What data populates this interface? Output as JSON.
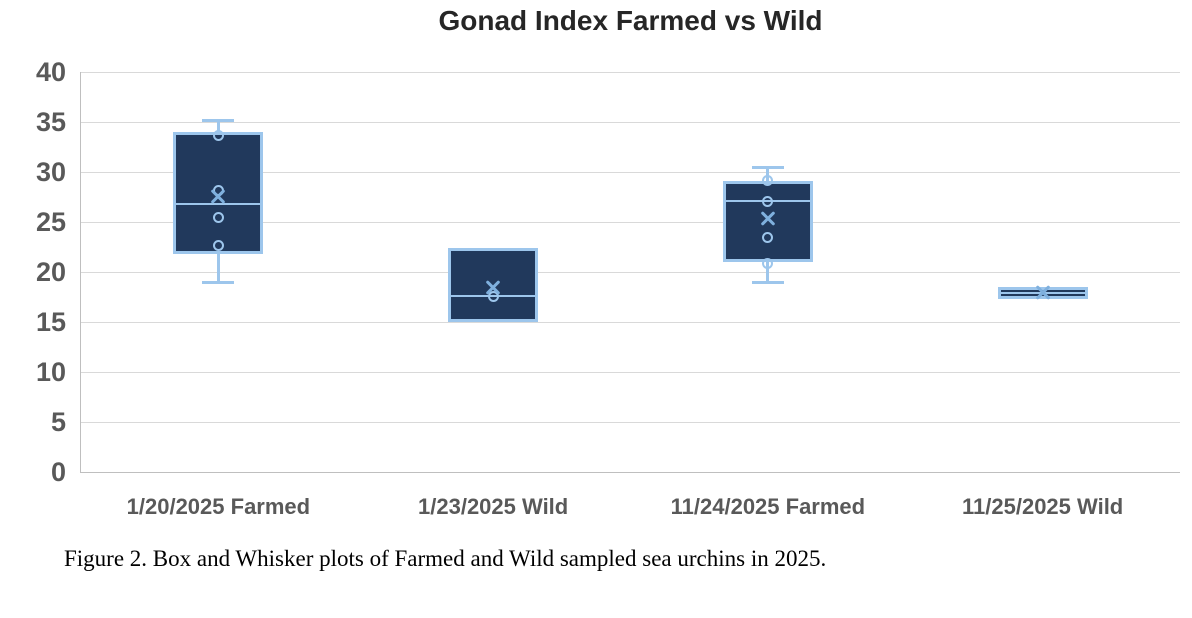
{
  "title": "Gonad Index Farmed vs Wild",
  "caption": "Figure 2. Box and Whisker plots of Farmed and Wild sampled sea urchins in 2025.",
  "colors": {
    "box_fill": "#21395C",
    "box_border": "#9DC6EC",
    "whisker": "#9DC6EC",
    "mean_marker": "#7FB0DE",
    "gridline": "#D9D9D9",
    "axis_line": "#BFBFBF",
    "axis_text": "#595959",
    "title_text": "#262626"
  },
  "chart_data": {
    "type": "box",
    "title": "Gonad Index Farmed vs Wild",
    "xlabel": "",
    "ylabel": "",
    "ylim": [
      0,
      40
    ],
    "ytick_step": 5,
    "ytick_labels": [
      "0",
      "5",
      "10",
      "15",
      "20",
      "25",
      "30",
      "35",
      "40"
    ],
    "grid": true,
    "legend": "none",
    "categories": [
      "1/20/2025 Farmed",
      "1/23/2025 Wild",
      "11/24/2025 Farmed",
      "11/25/2025 Wild"
    ],
    "series": [
      {
        "category": "1/20/2025 Farmed",
        "min": 19.0,
        "q1": 21.8,
        "median": 26.8,
        "q3": 34.0,
        "max": 35.2,
        "mean": 27.6,
        "points": [
          33.7,
          28.2,
          25.5,
          22.7
        ]
      },
      {
        "category": "1/23/2025 Wild",
        "min": 15.0,
        "q1": 15.0,
        "median": 17.6,
        "q3": 22.4,
        "max": 22.4,
        "mean": 18.5,
        "points": [
          17.6
        ]
      },
      {
        "category": "11/24/2025 Farmed",
        "min": 19.0,
        "q1": 21.0,
        "median": 27.1,
        "q3": 29.1,
        "max": 30.5,
        "mean": 25.4,
        "points": [
          29.2,
          27.1,
          23.5,
          20.9
        ]
      },
      {
        "category": "11/25/2025 Wild",
        "min": 17.3,
        "q1": 17.3,
        "median": 17.9,
        "q3": 18.5,
        "max": 18.5,
        "mean": 18.0,
        "points": []
      }
    ]
  }
}
